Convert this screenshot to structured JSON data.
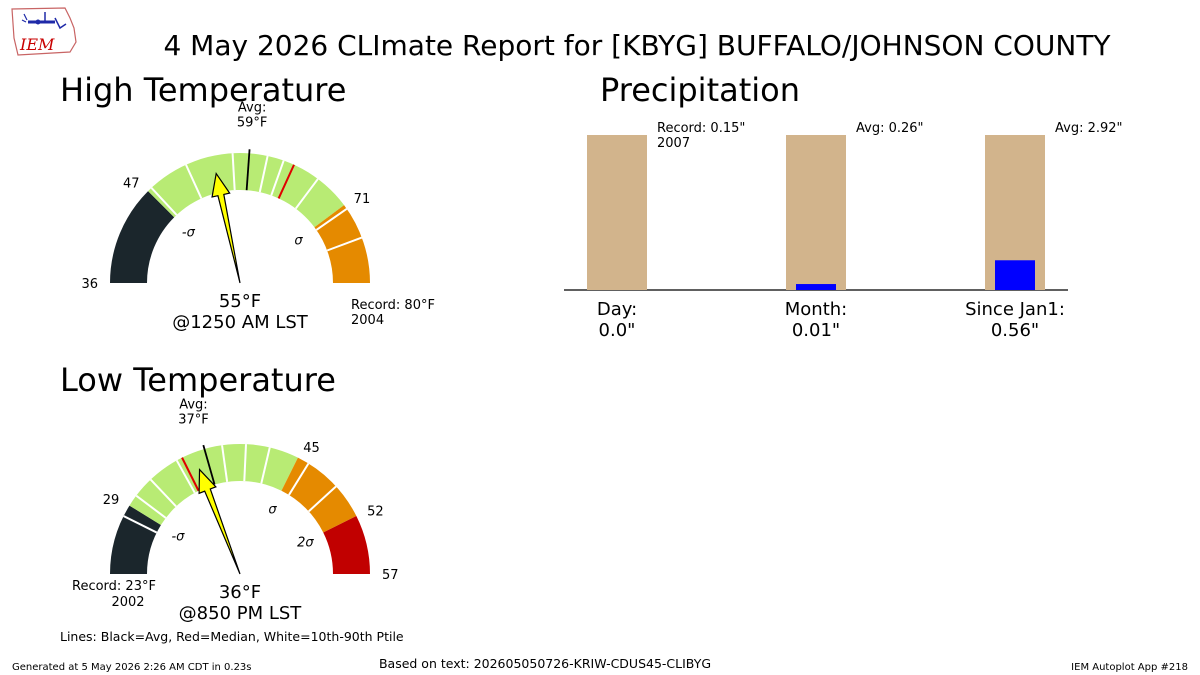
{
  "header": {
    "title": "4 May 2026 CLImate Report for [KBYG] BUFFALO/JOHNSON COUNTY",
    "logo_text": "IEM"
  },
  "footer": {
    "generated": "Generated at 5 May 2026 2:26 AM CDT in 0.23s",
    "based_on": "Based on text: 202605050726-KRIW-CDUS45-CLIBYG",
    "app": "IEM Autoplot App #218",
    "legend_note": "Lines: Black=Avg, Red=Median, White=10th-90th Ptile"
  },
  "colors": {
    "below_record": "#1b262c",
    "normal": "#b8eb74",
    "above": "#e58a00",
    "extreme_high": "#c10000",
    "needle": "#ffff00",
    "precip_avg_bar": "#d2b48c",
    "precip_obs_bar": "#0000ff"
  },
  "chart_data": [
    {
      "type": "gauge",
      "title": "High Temperature",
      "unit": "°F",
      "min": 36,
      "max": 80,
      "observed": 55,
      "observed_label": "55°F",
      "time_label": "@1250 AM LST",
      "avg": 59,
      "avg_label": "Avg:\n59°F",
      "median": 64,
      "minus_sigma": 47,
      "plus_sigma": 71,
      "plus2_sigma": null,
      "record": 80,
      "record_label": "Record: 80°F\n2004",
      "record_side": "high",
      "percentile_lines": [
        47.5,
        52,
        57.2,
        61,
        62.8,
        67,
        71.5,
        75
      ],
      "segments": [
        {
          "from": 36,
          "to": 47,
          "color": "#1b262c"
        },
        {
          "from": 47,
          "to": 71,
          "color": "#b8eb74"
        },
        {
          "from": 71,
          "to": 80,
          "color": "#e58a00"
        }
      ],
      "tick_labels": [
        {
          "value": 36,
          "text": "36"
        },
        {
          "value": 47,
          "text": "47"
        },
        {
          "value": 71,
          "text": "71"
        }
      ],
      "sigma_labels": [
        {
          "value": 47,
          "text": "-σ"
        },
        {
          "value": 71,
          "text": "σ"
        }
      ]
    },
    {
      "type": "gauge",
      "title": "Low Temperature",
      "unit": "°F",
      "min": 23,
      "max": 57,
      "observed": 36,
      "observed_label": "36°F",
      "time_label": "@850 PM LST",
      "avg": 37,
      "avg_label": "Avg:\n37°F",
      "median": 35,
      "minus_sigma": 29,
      "plus_sigma": 45,
      "plus2_sigma": 52,
      "record": 23,
      "record_label": "Record: 23°F\n2002",
      "record_side": "low",
      "percentile_lines": [
        28,
        30,
        31.8,
        34.5,
        38.5,
        40.5,
        42.5,
        46,
        49
      ],
      "segments": [
        {
          "from": 23,
          "to": 29,
          "color": "#1b262c"
        },
        {
          "from": 29,
          "to": 45,
          "color": "#b8eb74"
        },
        {
          "from": 45,
          "to": 52,
          "color": "#e58a00"
        },
        {
          "from": 52,
          "to": 57,
          "color": "#c10000"
        }
      ],
      "tick_labels": [
        {
          "value": 29,
          "text": "29"
        },
        {
          "value": 45,
          "text": "45"
        },
        {
          "value": 52,
          "text": "52"
        },
        {
          "value": 57,
          "text": "57"
        }
      ],
      "sigma_labels": [
        {
          "value": 29,
          "text": "-σ"
        },
        {
          "value": 45,
          "text": "σ"
        },
        {
          "value": 52,
          "text": "2σ"
        }
      ]
    },
    {
      "type": "bar",
      "title": "Precipitation",
      "categories": [
        "Day:\n0.0\"",
        "Month:\n0.01\"",
        "Since Jan1:\n0.56\""
      ],
      "series": [
        {
          "values": [
            0.15,
            0.26,
            2.92
          ],
          "color": "#d2b48c"
        },
        {
          "values": [
            0.0,
            0.01,
            0.56
          ],
          "color": "#0000ff"
        }
      ],
      "ref_labels": [
        "Record: 0.15\"\n2007",
        "Avg: 0.26\"",
        "Avg: 2.92\""
      ]
    }
  ]
}
